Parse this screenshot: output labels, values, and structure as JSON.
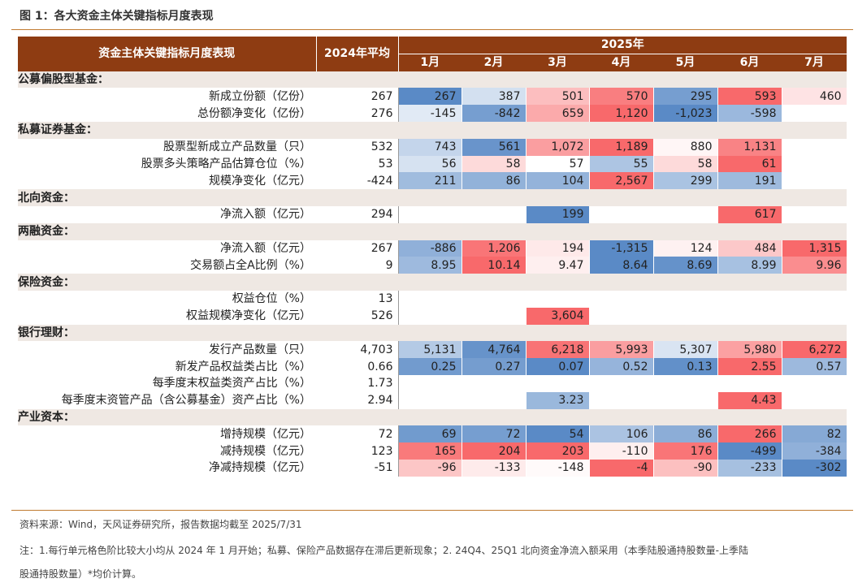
{
  "figure_title": "图 1：各大资金主体关键指标月度表现",
  "source": "资料来源：Wind，天风证券研究所，报告数据均截至 2025/7/31",
  "note_line1": "注：1.每行单元格色阶比较大小均从 2024 年 1 月开始；私募、保险产品数据存在滞后更新现象；2. 24Q4、25Q1 北向资金净流入额采用（本季陆股通持股数量-上季陆",
  "note_line2": "股通持股数量）*均价计算。",
  "colors": {
    "header_bg": "#8e3c12",
    "section_bg": "#efe8e3",
    "rule": "#c07a30",
    "high": "#f8696b",
    "mid": "#ffffff",
    "low": "#5a8ac6"
  },
  "chart_data": {
    "type": "table",
    "header": {
      "name_col": "资金主体关键指标月度表现",
      "avg_col": "2024年平均",
      "year": "2025年",
      "months": [
        "1月",
        "2月",
        "3月",
        "4月",
        "5月",
        "6月",
        "7月"
      ]
    },
    "sections": [
      {
        "name": "公募偏股型基金：",
        "rows": [
          {
            "label": "新成立份额（亿份）",
            "avg": "267",
            "values": [
              "267",
              "387",
              "501",
              "570",
              "295",
              "593",
              "460"
            ]
          },
          {
            "label": "总份额净变化（亿份）",
            "avg": "276",
            "values": [
              "-145",
              "-842",
              "659",
              "1,120",
              "-1,023",
              "-598",
              ""
            ]
          }
        ]
      },
      {
        "name": "私募证券基金：",
        "rows": [
          {
            "label": "股票型新成立产品数量（只）",
            "avg": "532",
            "values": [
              "743",
              "561",
              "1,072",
              "1,189",
              "880",
              "1,131",
              ""
            ]
          },
          {
            "label": "股票多头策略产品估算仓位（%）",
            "avg": "53",
            "values": [
              "56",
              "58",
              "57",
              "55",
              "58",
              "61",
              ""
            ]
          },
          {
            "label": "规模净变化（亿元）",
            "avg": "-424",
            "values": [
              "211",
              "86",
              "104",
              "2,567",
              "299",
              "191",
              ""
            ]
          }
        ]
      },
      {
        "name": "北向资金：",
        "rows": [
          {
            "label": "净流入额（亿元）",
            "avg": "294",
            "values": [
              "",
              "",
              "199",
              "",
              "",
              "617",
              ""
            ]
          }
        ]
      },
      {
        "name": "两融资金：",
        "rows": [
          {
            "label": "净流入额（亿元）",
            "avg": "267",
            "values": [
              "-886",
              "1,206",
              "194",
              "-1,315",
              "124",
              "484",
              "1,315"
            ]
          },
          {
            "label": "交易额占全A比例（%）",
            "avg": "9",
            "values": [
              "8.95",
              "10.14",
              "9.47",
              "8.64",
              "8.69",
              "8.99",
              "9.96"
            ]
          }
        ]
      },
      {
        "name": "保险资金：",
        "rows": [
          {
            "label": "权益仓位（%）",
            "avg": "13",
            "values": [
              "",
              "",
              "",
              "",
              "",
              "",
              ""
            ]
          },
          {
            "label": "权益规模净变化（亿元）",
            "avg": "526",
            "values": [
              "",
              "",
              "3,604",
              "",
              "",
              "",
              ""
            ]
          }
        ]
      },
      {
        "name": "银行理财：",
        "rows": [
          {
            "label": "发行产品数量（只）",
            "avg": "4,703",
            "values": [
              "5,131",
              "4,764",
              "6,218",
              "5,993",
              "5,307",
              "5,980",
              "6,272"
            ]
          },
          {
            "label": "新发产品权益类占比（%）",
            "avg": "0.66",
            "values": [
              "0.25",
              "0.27",
              "0.07",
              "0.52",
              "0.13",
              "2.55",
              "0.57"
            ]
          },
          {
            "label": "每季度末权益类资产占比（%）",
            "avg": "1.73",
            "values": [
              "",
              "",
              "",
              "",
              "",
              "",
              ""
            ]
          },
          {
            "label": "每季度末资管产品（含公募基金）资产占比（%）",
            "avg": "2.94",
            "values": [
              "",
              "",
              "3.23",
              "",
              "",
              "4.43",
              ""
            ]
          }
        ]
      },
      {
        "name": "产业资本：",
        "rows": [
          {
            "label": "增持规模（亿元）",
            "avg": "72",
            "values": [
              "69",
              "72",
              "54",
              "106",
              "86",
              "266",
              "82"
            ]
          },
          {
            "label": "减持规模（亿元）",
            "avg": "123",
            "values": [
              "165",
              "204",
              "203",
              "-110",
              "176",
              "-499",
              "-384"
            ]
          },
          {
            "label": "净减持规模（亿元）",
            "avg": "-51",
            "values": [
              "-96",
              "-133",
              "-148",
              "-4",
              "-90",
              "-233",
              "-302"
            ]
          }
        ]
      }
    ]
  }
}
